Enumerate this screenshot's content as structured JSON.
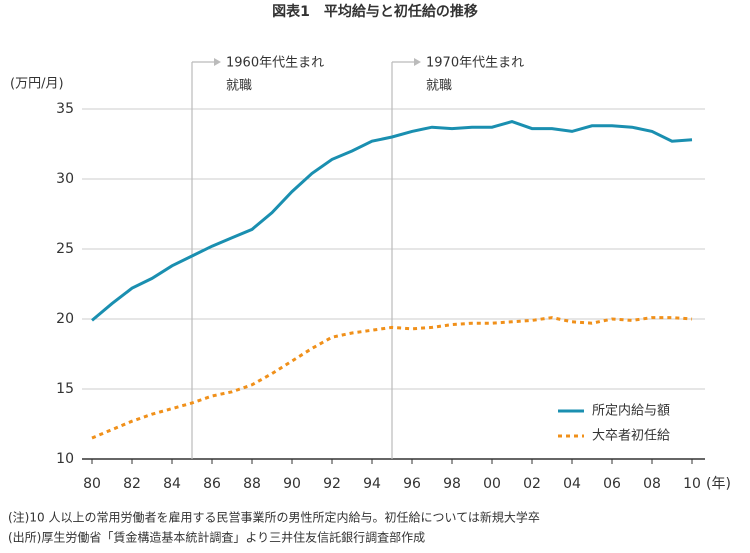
{
  "chart_data": {
    "type": "line",
    "title": "図表1　平均給与と初任給の推移",
    "y_label": "(万円/月)",
    "x_label": "(年)",
    "x": [
      1980,
      1981,
      1982,
      1983,
      1984,
      1985,
      1986,
      1987,
      1988,
      1989,
      1990,
      1991,
      1992,
      1993,
      1994,
      1995,
      1996,
      1997,
      1998,
      1999,
      2000,
      2001,
      2002,
      2003,
      2004,
      2005,
      2006,
      2007,
      2008,
      2009,
      2010
    ],
    "series": [
      {
        "name": "所定内給与額",
        "color": "#1a8fb0",
        "dash": false,
        "values": [
          19.9,
          21.1,
          22.2,
          22.9,
          23.8,
          24.5,
          25.2,
          25.8,
          26.4,
          27.6,
          29.1,
          30.4,
          31.4,
          32.0,
          32.7,
          33.0,
          33.4,
          33.7,
          33.6,
          33.7,
          33.7,
          34.1,
          33.6,
          33.6,
          33.4,
          33.8,
          33.8,
          33.7,
          33.4,
          32.7,
          32.8
        ]
      },
      {
        "name": "大卒者初任給",
        "color": "#f0901a",
        "dash": true,
        "values": [
          11.5,
          12.1,
          12.7,
          13.2,
          13.6,
          14.0,
          14.5,
          14.8,
          15.3,
          16.1,
          17.0,
          17.9,
          18.7,
          19.0,
          19.2,
          19.4,
          19.3,
          19.4,
          19.6,
          19.7,
          19.7,
          19.8,
          19.9,
          20.1,
          19.8,
          19.7,
          20.0,
          19.9,
          20.1,
          20.1,
          20.0
        ]
      }
    ],
    "xlim": [
      1980,
      2010
    ],
    "xticks": [
      {
        "value": 1980,
        "label": "80"
      },
      {
        "value": 1982,
        "label": "82"
      },
      {
        "value": 1984,
        "label": "84"
      },
      {
        "value": 1986,
        "label": "86"
      },
      {
        "value": 1988,
        "label": "88"
      },
      {
        "value": 1990,
        "label": "90"
      },
      {
        "value": 1992,
        "label": "92"
      },
      {
        "value": 1994,
        "label": "94"
      },
      {
        "value": 1996,
        "label": "96"
      },
      {
        "value": 1998,
        "label": "98"
      },
      {
        "value": 2000,
        "label": "00"
      },
      {
        "value": 2002,
        "label": "02"
      },
      {
        "value": 2004,
        "label": "04"
      },
      {
        "value": 2006,
        "label": "06"
      },
      {
        "value": 2008,
        "label": "08"
      },
      {
        "value": 2010,
        "label": "10"
      }
    ],
    "ylim": [
      10,
      35
    ],
    "yticks": [
      10,
      15,
      20,
      25,
      30,
      35
    ],
    "grid": true,
    "annotations": [
      {
        "x": 1985,
        "text": "1960年代生まれ",
        "text2": "就職"
      },
      {
        "x": 1995,
        "text": "1970年代生まれ",
        "text2": "就職"
      }
    ],
    "notes": [
      "(注)10 人以上の常用労働者を雇用する民営事業所の男性所定内給与。初任給については新規大学卒",
      "(出所)厚生労働省「賃金構造基本統計調査」より三井住友信託銀行調査部作成"
    ]
  }
}
